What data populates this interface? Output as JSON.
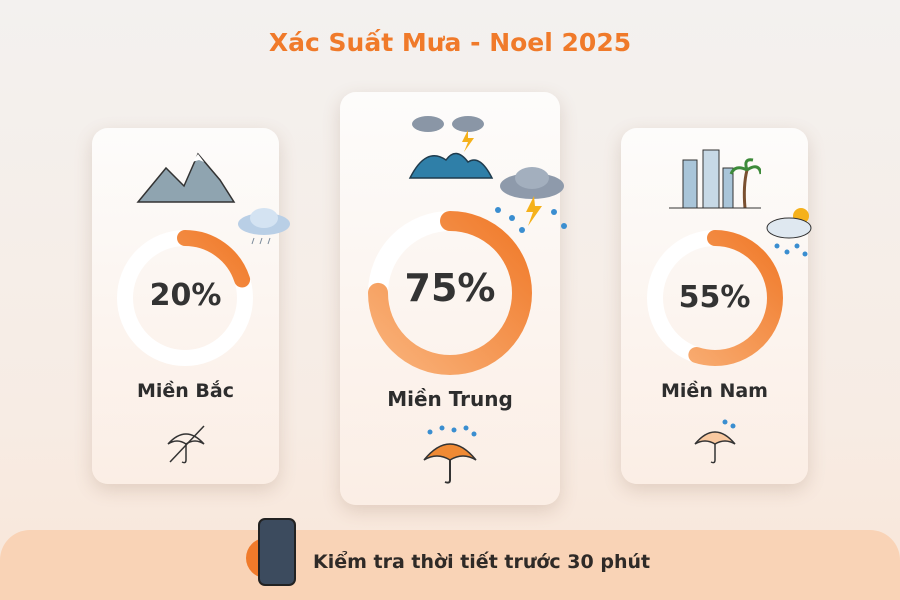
{
  "title": "Xác Suất Mưa - Noel 2025",
  "colors": {
    "accent": "#f07a2a",
    "track": "#ffffff",
    "banner": "#f9d3b6"
  },
  "chart_data": {
    "type": "donut-gauge",
    "title": "Xác Suất Mưa - Noel 2025",
    "unit": "%",
    "range": [
      0,
      100
    ],
    "categories": [
      "Miền Bắc",
      "Miền Trung",
      "Miền Nam"
    ],
    "values": [
      20,
      75,
      55
    ],
    "labels": [
      "20%",
      "75%",
      "55%"
    ]
  },
  "cards": [
    {
      "region": "Miền Bắc",
      "percent": "20%",
      "top_icon": "mountains-icon",
      "weather_icon": "cloud-rain-icon",
      "bottom_icon": "umbrella-crossed-icon"
    },
    {
      "region": "Miền Trung",
      "percent": "75%",
      "top_icon": "storm-waves-icon",
      "weather_icon": "thunderstorm-cloud-icon",
      "bottom_icon": "umbrella-rain-icon"
    },
    {
      "region": "Miền Nam",
      "percent": "55%",
      "top_icon": "city-palm-icon",
      "weather_icon": "sun-cloud-rain-icon",
      "bottom_icon": "umbrella-drops-icon"
    }
  ],
  "banner": {
    "text": "Kiểm tra thời tiết trước 30 phút",
    "icon": "phone-weather-icon"
  }
}
